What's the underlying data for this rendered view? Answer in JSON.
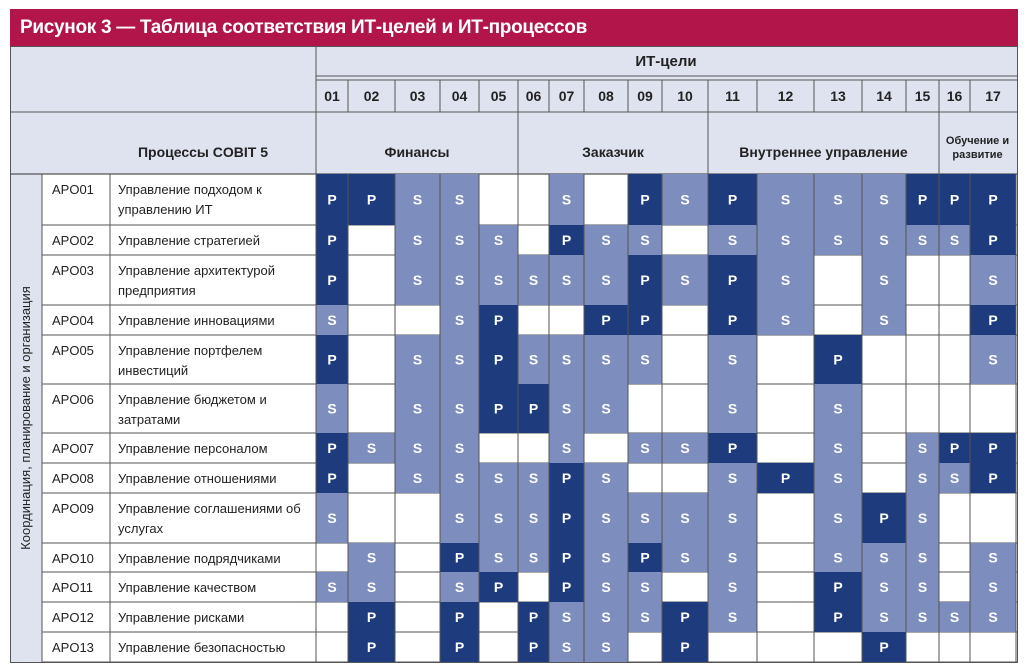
{
  "title": "Рисунок 3 — Таблица соответствия ИТ-целей и ИТ-процессов",
  "header": {
    "goals_label": "ИТ-цели",
    "processes_label": "Процессы COBIT 5",
    "side_label": "Координация, планирование и организация",
    "goal_numbers": [
      "01",
      "02",
      "03",
      "04",
      "05",
      "06",
      "07",
      "08",
      "09",
      "10",
      "11",
      "12",
      "13",
      "14",
      "15",
      "16",
      "17"
    ],
    "groups": [
      {
        "label": "Финансы",
        "span": 5
      },
      {
        "label": "Заказчик",
        "span": 5
      },
      {
        "label": "Внутреннее управление",
        "span": 5
      },
      {
        "label": "Обучение и развитие",
        "span": 2
      }
    ]
  },
  "colors": {
    "title_bg": "#b1154a",
    "header_bg": "#dfe3f0",
    "primary": "#1d3b7d",
    "secondary": "#7d8dbd",
    "border": "#555555"
  },
  "rows": [
    {
      "code": "APO01",
      "name": [
        "Управление подходом к",
        "управлению ИТ"
      ],
      "cells": [
        "P",
        "P",
        "S",
        "S",
        "",
        "",
        "S",
        "",
        "P",
        "S",
        "P",
        "S",
        "S",
        "S",
        "P",
        "P",
        "P"
      ]
    },
    {
      "code": "APO02",
      "name": [
        "Управление стратегией"
      ],
      "cells": [
        "P",
        "",
        "S",
        "S",
        "S",
        "",
        "P",
        "S",
        "S",
        "",
        "S",
        "S",
        "S",
        "S",
        "S",
        "S",
        "P"
      ]
    },
    {
      "code": "APO03",
      "name": [
        "Управление архитектурой",
        "предприятия"
      ],
      "cells": [
        "P",
        "",
        "S",
        "S",
        "S",
        "S",
        "S",
        "S",
        "P",
        "S",
        "P",
        "S",
        "",
        "S",
        "",
        "",
        "S"
      ]
    },
    {
      "code": "APO04",
      "name": [
        "Управление инновациями"
      ],
      "cells": [
        "S",
        "",
        "",
        "S",
        "P",
        "",
        "",
        "P",
        "P",
        "",
        "P",
        "S",
        "",
        "S",
        "",
        "",
        "P"
      ]
    },
    {
      "code": "APO05",
      "name": [
        "Управление портфелем",
        "инвестиций"
      ],
      "cells": [
        "P",
        "",
        "S",
        "S",
        "P",
        "S",
        "S",
        "S",
        "S",
        "",
        "S",
        "",
        "P",
        "",
        "",
        "",
        "S"
      ]
    },
    {
      "code": "APO06",
      "name": [
        "Управление бюджетом и",
        "затратами"
      ],
      "cells": [
        "S",
        "",
        "S",
        "S",
        "P",
        "P",
        "S",
        "S",
        "",
        "",
        "S",
        "",
        "S",
        "",
        "",
        "",
        ""
      ]
    },
    {
      "code": "APO07",
      "name": [
        "Управление персоналом"
      ],
      "cells": [
        "P",
        "S",
        "S",
        "S",
        "",
        "",
        "S",
        "",
        "S",
        "S",
        "P",
        "",
        "S",
        "",
        "S",
        "P",
        "P"
      ]
    },
    {
      "code": "APO08",
      "name": [
        "Управление отношениями"
      ],
      "cells": [
        "P",
        "",
        "S",
        "S",
        "S",
        "S",
        "P",
        "S",
        "",
        "",
        "S",
        "P",
        "S",
        "",
        "S",
        "S",
        "P"
      ]
    },
    {
      "code": "APO09",
      "name": [
        "Управление соглашениями об",
        "услугах"
      ],
      "cells": [
        "S",
        "",
        "",
        "S",
        "S",
        "S",
        "P",
        "S",
        "S",
        "S",
        "S",
        "",
        "S",
        "P",
        "S",
        "",
        ""
      ]
    },
    {
      "code": "APO10",
      "name": [
        "Управление подрядчиками"
      ],
      "cells": [
        "",
        "S",
        "",
        "P",
        "S",
        "S",
        "P",
        "S",
        "P",
        "S",
        "S",
        "",
        "S",
        "S",
        "S",
        "",
        "S"
      ]
    },
    {
      "code": "APO11",
      "name": [
        "Управление качеством"
      ],
      "cells": [
        "S",
        "S",
        "",
        "S",
        "P",
        "",
        "P",
        "S",
        "S",
        "",
        "S",
        "",
        "P",
        "S",
        "S",
        "",
        "S"
      ]
    },
    {
      "code": "APO12",
      "name": [
        "Управление рисками"
      ],
      "cells": [
        "",
        "P",
        "",
        "P",
        "",
        "P",
        "S",
        "S",
        "S",
        "P",
        "S",
        "",
        "P",
        "S",
        "S",
        "S",
        "S"
      ]
    },
    {
      "code": "APO13",
      "name": [
        "Управление безопасностью"
      ],
      "cells": [
        "",
        "P",
        "",
        "P",
        "",
        "P",
        "S",
        "S",
        "",
        "P",
        "",
        "",
        "",
        "P",
        "",
        "",
        ""
      ]
    }
  ]
}
